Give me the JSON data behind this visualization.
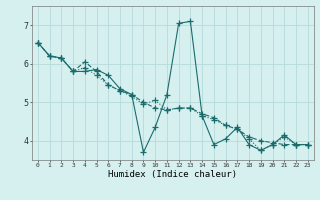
{
  "xlabel": "Humidex (Indice chaleur)",
  "bg_color": "#d6f0f0",
  "grid_color": "#b8dada",
  "line_color": "#1a6b6b",
  "xlim": [
    -0.5,
    23.5
  ],
  "ylim": [
    3.5,
    7.5
  ],
  "yticks": [
    4,
    5,
    6,
    7
  ],
  "xticks": [
    0,
    1,
    2,
    3,
    4,
    5,
    6,
    7,
    8,
    9,
    10,
    11,
    12,
    13,
    14,
    15,
    16,
    17,
    18,
    19,
    20,
    21,
    22,
    23
  ],
  "series1_x": [
    0,
    1,
    2,
    3,
    4,
    5,
    6,
    7,
    8,
    9,
    10,
    11,
    12,
    13,
    14,
    15,
    16,
    17,
    18,
    19,
    20,
    21,
    22,
    23
  ],
  "series1_y": [
    6.55,
    6.2,
    6.15,
    5.8,
    5.8,
    5.85,
    5.7,
    5.35,
    5.2,
    3.7,
    4.35,
    5.2,
    7.05,
    7.1,
    4.65,
    3.9,
    4.05,
    4.35,
    3.9,
    3.75,
    3.9,
    4.15,
    3.9,
    3.9
  ],
  "series2_x": [
    0,
    1,
    2,
    3,
    4,
    5,
    6,
    7,
    8,
    9,
    10,
    11,
    12,
    13,
    14,
    15,
    16,
    17,
    18,
    19,
    20,
    21,
    22,
    23
  ],
  "series2_y": [
    6.55,
    6.2,
    6.15,
    5.8,
    6.05,
    5.8,
    5.45,
    5.3,
    5.2,
    5.0,
    4.85,
    4.8,
    4.85,
    4.85,
    4.7,
    4.6,
    4.4,
    4.3,
    4.1,
    4.0,
    3.95,
    3.9,
    3.9,
    3.9
  ],
  "series3_x": [
    0,
    1,
    2,
    3,
    4,
    5,
    6,
    7,
    8,
    9,
    10,
    11,
    12,
    13,
    14,
    15,
    16,
    17,
    18,
    19,
    20,
    21,
    22,
    23
  ],
  "series3_y": [
    6.55,
    6.2,
    6.15,
    5.8,
    5.9,
    5.7,
    5.45,
    5.3,
    5.15,
    4.95,
    5.05,
    4.8,
    4.85,
    4.85,
    4.65,
    4.55,
    4.4,
    4.3,
    4.05,
    3.75,
    3.9,
    4.1,
    3.9,
    3.9
  ]
}
